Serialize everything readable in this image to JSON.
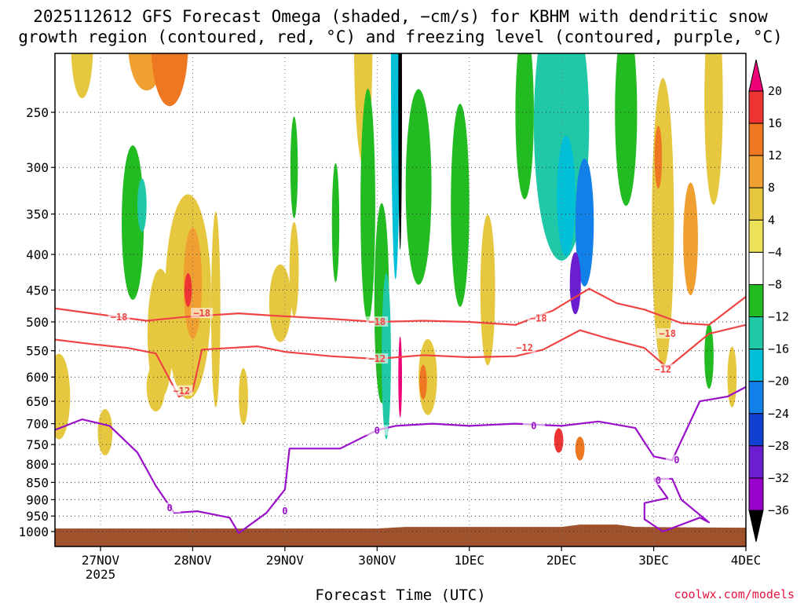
{
  "chart_data": {
    "type": "heatmap",
    "title_line1": "2025112612 GFS Forecast Omega (shaded, −cm/s) for KBHM with dendritic snow",
    "title_line2": "growth region (contoured, red, °C) and freezing level (contoured, purple, °C)",
    "xlabel": "Forecast Time (UTC)",
    "credit": "coolwx.com/models",
    "x_ticks": [
      {
        "t": 0,
        "label": "27NOV",
        "sub": "2025"
      },
      {
        "t": 1,
        "label": "28NOV",
        "sub": ""
      },
      {
        "t": 2,
        "label": "29NOV",
        "sub": ""
      },
      {
        "t": 3,
        "label": "30NOV",
        "sub": ""
      },
      {
        "t": 4,
        "label": "1DEC",
        "sub": ""
      },
      {
        "t": 5,
        "label": "2DEC",
        "sub": ""
      },
      {
        "t": 6,
        "label": "3DEC",
        "sub": ""
      },
      {
        "t": 7,
        "label": "4DEC",
        "sub": ""
      }
    ],
    "xlim": [
      -0.5,
      7.0
    ],
    "y_ticks": [
      250,
      300,
      350,
      400,
      450,
      500,
      550,
      600,
      650,
      700,
      750,
      800,
      850,
      900,
      950,
      1000
    ],
    "ylim": [
      200,
      1020
    ],
    "y_scale": "log-pressure",
    "grid": "dotted",
    "colorbar": {
      "labels": [
        "20",
        "16",
        "12",
        "8",
        "4",
        "−4",
        "−8",
        "−12",
        "−16",
        "−20",
        "−24",
        "−28",
        "−32",
        "−36"
      ],
      "colors": [
        "#ee0077",
        "#ee3333",
        "#ee7722",
        "#f0a030",
        "#e6c840",
        "#ebe25a",
        "#ffffff",
        "#22bb22",
        "#20c8a8",
        "#00c0d8",
        "#1180e8",
        "#1040d0",
        "#6a1ed0",
        "#9900cc",
        "#aaaaaa",
        "#000000"
      ]
    },
    "shading_blobs": [
      {
        "t": -0.45,
        "p": 640,
        "w": 0.12,
        "h": 180,
        "level": 4
      },
      {
        "t": -0.2,
        "p": 200,
        "w": 0.12,
        "h": 70,
        "level": 4
      },
      {
        "t": 0.05,
        "p": 720,
        "w": 0.08,
        "h": 110,
        "level": 4
      },
      {
        "t": 0.35,
        "p": 360,
        "w": 0.12,
        "h": 180,
        "level": -8
      },
      {
        "t": 0.45,
        "p": 340,
        "w": 0.05,
        "h": 60,
        "level": -12
      },
      {
        "t": 0.5,
        "p": 200,
        "w": 0.2,
        "h": 60,
        "level": 8
      },
      {
        "t": 0.75,
        "p": 200,
        "w": 0.2,
        "h": 80,
        "level": 12
      },
      {
        "t": 0.65,
        "p": 520,
        "w": 0.14,
        "h": 220,
        "level": 4
      },
      {
        "t": 0.95,
        "p": 460,
        "w": 0.25,
        "h": 300,
        "level": 4
      },
      {
        "t": 1.0,
        "p": 440,
        "w": 0.1,
        "h": 160,
        "level": 8
      },
      {
        "t": 0.95,
        "p": 450,
        "w": 0.04,
        "h": 50,
        "level": 16
      },
      {
        "t": 0.6,
        "p": 620,
        "w": 0.1,
        "h": 100,
        "level": 4
      },
      {
        "t": 1.25,
        "p": 480,
        "w": 0.05,
        "h": 300,
        "level": 4
      },
      {
        "t": 1.55,
        "p": 640,
        "w": 0.05,
        "h": 120,
        "level": 4
      },
      {
        "t": 1.95,
        "p": 470,
        "w": 0.12,
        "h": 120,
        "level": 4
      },
      {
        "t": 2.1,
        "p": 420,
        "w": 0.05,
        "h": 130,
        "level": 4
      },
      {
        "t": 2.1,
        "p": 300,
        "w": 0.04,
        "h": 100,
        "level": -8
      },
      {
        "t": 2.55,
        "p": 360,
        "w": 0.04,
        "h": 140,
        "level": -8
      },
      {
        "t": 2.85,
        "p": 200,
        "w": 0.1,
        "h": 150,
        "level": 4
      },
      {
        "t": 2.9,
        "p": 340,
        "w": 0.08,
        "h": 250,
        "level": -8
      },
      {
        "t": 3.05,
        "p": 470,
        "w": 0.08,
        "h": 300,
        "level": -8
      },
      {
        "t": 3.1,
        "p": 560,
        "w": 0.05,
        "h": 300,
        "level": -12
      },
      {
        "t": 3.2,
        "p": 200,
        "w": 0.05,
        "h": 260,
        "level": -16
      },
      {
        "t": 3.25,
        "p": 240,
        "w": 0.02,
        "h": 220,
        "level": -36
      },
      {
        "t": 3.25,
        "p": 600,
        "w": 0.02,
        "h": 160,
        "level": 20
      },
      {
        "t": 3.45,
        "p": 320,
        "w": 0.14,
        "h": 200,
        "level": -8
      },
      {
        "t": 3.55,
        "p": 600,
        "w": 0.1,
        "h": 150,
        "level": 4
      },
      {
        "t": 3.5,
        "p": 610,
        "w": 0.04,
        "h": 70,
        "level": 12
      },
      {
        "t": 3.9,
        "p": 340,
        "w": 0.1,
        "h": 220,
        "level": -8
      },
      {
        "t": 4.2,
        "p": 450,
        "w": 0.08,
        "h": 220,
        "level": 4
      },
      {
        "t": 4.6,
        "p": 250,
        "w": 0.1,
        "h": 140,
        "level": -8
      },
      {
        "t": 5.0,
        "p": 260,
        "w": 0.3,
        "h": 220,
        "level": -12
      },
      {
        "t": 5.05,
        "p": 330,
        "w": 0.1,
        "h": 130,
        "level": -16
      },
      {
        "t": 5.25,
        "p": 360,
        "w": 0.1,
        "h": 150,
        "level": -20
      },
      {
        "t": 5.15,
        "p": 440,
        "w": 0.06,
        "h": 90,
        "level": -28
      },
      {
        "t": 4.97,
        "p": 740,
        "w": 0.05,
        "h": 60,
        "level": 16
      },
      {
        "t": 5.2,
        "p": 760,
        "w": 0.05,
        "h": 60,
        "level": 12
      },
      {
        "t": 5.7,
        "p": 250,
        "w": 0.12,
        "h": 150,
        "level": -8
      },
      {
        "t": 6.1,
        "p": 360,
        "w": 0.12,
        "h": 320,
        "level": 4
      },
      {
        "t": 6.05,
        "p": 290,
        "w": 0.04,
        "h": 60,
        "level": 12
      },
      {
        "t": 6.4,
        "p": 380,
        "w": 0.08,
        "h": 140,
        "level": 8
      },
      {
        "t": 6.65,
        "p": 240,
        "w": 0.1,
        "h": 160,
        "level": 4
      },
      {
        "t": 6.6,
        "p": 560,
        "w": 0.05,
        "h": 120,
        "level": -8
      },
      {
        "t": 6.85,
        "p": 600,
        "w": 0.05,
        "h": 120,
        "level": 4
      }
    ],
    "contours": [
      {
        "name": "-18",
        "color": "#ee4444",
        "label": "−18",
        "points": [
          [
            -0.5,
            478
          ],
          [
            -0.2,
            484
          ],
          [
            0.2,
            492
          ],
          [
            0.5,
            498
          ],
          [
            0.9,
            492
          ],
          [
            1.1,
            490
          ],
          [
            1.5,
            486
          ],
          [
            1.9,
            490
          ],
          [
            2.5,
            495
          ],
          [
            3.0,
            500
          ],
          [
            3.5,
            498
          ],
          [
            4.0,
            500
          ],
          [
            4.5,
            505
          ],
          [
            4.9,
            482
          ],
          [
            5.3,
            448
          ],
          [
            5.6,
            470
          ],
          [
            5.9,
            480
          ],
          [
            6.3,
            502
          ],
          [
            6.6,
            505
          ],
          [
            7.0,
            460
          ]
        ],
        "label_at": [
          [
            0.2,
            492
          ],
          [
            1.1,
            486
          ],
          [
            3.0,
            500
          ],
          [
            4.75,
            494
          ],
          [
            6.15,
            520
          ]
        ]
      },
      {
        "name": "-12",
        "color": "#ee4444",
        "label": "−12",
        "points": [
          [
            -0.5,
            530
          ],
          [
            -0.1,
            538
          ],
          [
            0.3,
            545
          ],
          [
            0.6,
            555
          ],
          [
            0.85,
            640
          ],
          [
            1.0,
            628
          ],
          [
            1.1,
            548
          ],
          [
            1.4,
            545
          ],
          [
            1.7,
            542
          ],
          [
            2.0,
            552
          ],
          [
            2.5,
            560
          ],
          [
            3.0,
            565
          ],
          [
            3.5,
            558
          ],
          [
            4.0,
            562
          ],
          [
            4.5,
            560
          ],
          [
            4.8,
            548
          ],
          [
            5.2,
            514
          ],
          [
            5.5,
            528
          ],
          [
            5.9,
            545
          ],
          [
            6.15,
            582
          ],
          [
            6.6,
            520
          ],
          [
            7.0,
            505
          ]
        ],
        "label_at": [
          [
            0.88,
            628
          ],
          [
            3.0,
            565
          ],
          [
            4.6,
            545
          ],
          [
            6.1,
            585
          ]
        ]
      },
      {
        "name": "0",
        "color": "#9a10c8",
        "label": "0",
        "points": [
          [
            -0.5,
            715
          ],
          [
            -0.2,
            690
          ],
          [
            0.1,
            705
          ],
          [
            0.4,
            770
          ],
          [
            0.6,
            860
          ],
          [
            0.8,
            940
          ],
          [
            1.05,
            935
          ],
          [
            1.4,
            955
          ],
          [
            1.5,
            1005
          ],
          [
            1.8,
            940
          ],
          [
            2.0,
            870
          ],
          [
            2.05,
            760
          ],
          [
            2.6,
            760
          ],
          [
            3.0,
            715
          ],
          [
            3.2,
            705
          ],
          [
            3.6,
            700
          ],
          [
            4.0,
            705
          ],
          [
            4.5,
            700
          ],
          [
            5.0,
            705
          ],
          [
            5.4,
            695
          ],
          [
            5.8,
            710
          ],
          [
            6.0,
            780
          ],
          [
            6.2,
            790
          ],
          [
            6.5,
            650
          ],
          [
            6.8,
            640
          ],
          [
            7.0,
            620
          ]
        ],
        "label_at": [
          [
            0.75,
            925
          ],
          [
            2.0,
            935
          ],
          [
            3.0,
            716
          ],
          [
            4.7,
            705
          ],
          [
            6.25,
            790
          ]
        ]
      },
      {
        "name": "0-low",
        "color": "#9a10c8",
        "label": "0",
        "points": [
          [
            6.0,
            840
          ],
          [
            6.15,
            895
          ],
          [
            5.9,
            910
          ],
          [
            5.9,
            960
          ],
          [
            6.1,
            1000
          ],
          [
            6.5,
            955
          ],
          [
            6.6,
            970
          ],
          [
            6.3,
            900
          ],
          [
            6.2,
            840
          ],
          [
            6.0,
            840
          ]
        ],
        "label_at": [
          [
            6.05,
            845
          ]
        ]
      }
    ],
    "terrain_top_p": 985,
    "terrain_color": "#a0522d"
  }
}
